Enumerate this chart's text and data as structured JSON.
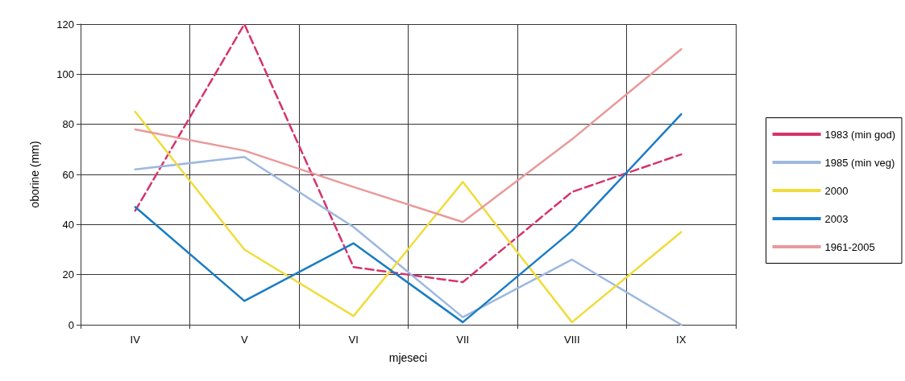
{
  "chart_data": {
    "type": "line",
    "xlabel": "mjeseci",
    "ylabel": "oborine (mm)",
    "categories": [
      "IV",
      "V",
      "VI",
      "VII",
      "VIII",
      "IX"
    ],
    "series": [
      {
        "name": "1983 (min god)",
        "color": "#d6336c",
        "line_style": "dashed",
        "values": [
          45.5,
          120,
          23,
          17,
          53,
          68
        ]
      },
      {
        "name": "1985 (min veg)",
        "color": "#9db8e0",
        "values": [
          62,
          67,
          39,
          3,
          26,
          0
        ]
      },
      {
        "name": "2000",
        "color": "#f0dc3c",
        "values": [
          85,
          30,
          3.5,
          57,
          1,
          37
        ]
      },
      {
        "name": "2003",
        "color": "#1a7cc4",
        "values": [
          47,
          9.5,
          32.5,
          1,
          37.5,
          84
        ]
      },
      {
        "name": "1961-2005",
        "color": "#e89a9a",
        "values": [
          78,
          69.5,
          55,
          41,
          74,
          110
        ]
      }
    ],
    "ylim": [
      0,
      120
    ],
    "yticks": [
      0,
      20,
      40,
      60,
      80,
      100,
      120
    ],
    "grid": true,
    "legend": "right",
    "marker": "none"
  }
}
